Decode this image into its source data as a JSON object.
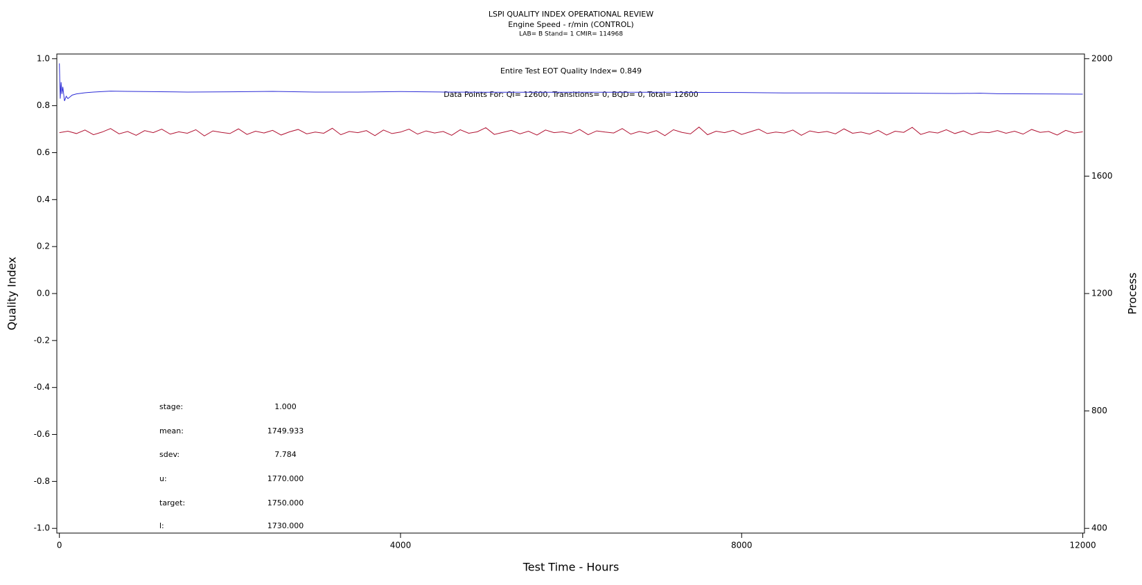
{
  "chart_data": {
    "type": "line",
    "title": "LSPI QUALITY INDEX OPERATIONAL REVIEW",
    "subtitle": "Engine Speed - r/min (CONTROL)",
    "subtitle2": "LAB= B Stand= 1 CMIR= 114968",
    "xlabel": "Test Time - Hours",
    "ylabel": "Quality Index",
    "y2label": "Process",
    "annotations": [
      "Entire Test EOT Quality Index=   0.849",
      "Data Points For: QI= 12600, Transitions=     0, BQD=     0, Total= 12600"
    ],
    "stats_table": [
      {
        "label": "stage:",
        "value": "1.000"
      },
      {
        "label": "mean:",
        "value": "1749.933"
      },
      {
        "label": "sdev:",
        "value": "7.784"
      },
      {
        "label": "u:",
        "value": "1770.000"
      },
      {
        "label": "target:",
        "value": "1750.000"
      },
      {
        "label": "l:",
        "value": "1730.000"
      }
    ],
    "xlim": [
      -30,
      12020
    ],
    "xticks": [
      0,
      4000,
      8000,
      12000
    ],
    "ylim": [
      -1.02,
      1.02
    ],
    "yticks": [
      {
        "value": -1,
        "label": "-1.0"
      },
      -0.8,
      -0.6,
      -0.4,
      -0.2,
      {
        "value": 0,
        "label": "0.0"
      },
      0.2,
      0.4,
      0.6,
      0.8,
      {
        "value": 1,
        "label": "1.0"
      }
    ],
    "y2lim": [
      384,
      2016
    ],
    "y2ticks": [
      400,
      800,
      1200,
      1600,
      2000
    ],
    "series": [
      {
        "color": "#b01030",
        "axis": "y2",
        "x": [
          0,
          100,
          200,
          300,
          400,
          500,
          600,
          700,
          800,
          900,
          1000,
          1100,
          1200,
          1300,
          1400,
          1500,
          1600,
          1700,
          1800,
          1900,
          2000,
          2100,
          2200,
          2300,
          2400,
          2500,
          2600,
          2700,
          2800,
          2900,
          3000,
          3100,
          3200,
          3300,
          3400,
          3500,
          3600,
          3700,
          3800,
          3900,
          4000,
          4100,
          4200,
          4300,
          4400,
          4500,
          4600,
          4700,
          4800,
          4900,
          5000,
          5100,
          5200,
          5300,
          5400,
          5500,
          5600,
          5700,
          5800,
          5900,
          6000,
          6100,
          6200,
          6300,
          6400,
          6500,
          6600,
          6700,
          6800,
          6900,
          7000,
          7100,
          7200,
          7300,
          7400,
          7500,
          7600,
          7700,
          7800,
          7900,
          8000,
          8100,
          8200,
          8300,
          8400,
          8500,
          8600,
          8700,
          8800,
          8900,
          9000,
          9100,
          9200,
          9300,
          9400,
          9500,
          9600,
          9700,
          9800,
          9900,
          10000,
          10100,
          10200,
          10300,
          10400,
          10500,
          10600,
          10700,
          10800,
          10900,
          11000,
          11100,
          11200,
          11300,
          11400,
          11500,
          11600,
          11700,
          11800,
          11900,
          12000
        ],
        "values": [
          1748,
          1753,
          1745,
          1757,
          1741,
          1750,
          1762,
          1744,
          1752,
          1739,
          1755,
          1748,
          1760,
          1743,
          1751,
          1746,
          1758,
          1737,
          1754,
          1749,
          1745,
          1761,
          1742,
          1753,
          1747,
          1756,
          1740,
          1751,
          1759,
          1744,
          1750,
          1746,
          1763,
          1741,
          1752,
          1748,
          1755,
          1738,
          1757,
          1745,
          1750,
          1760,
          1743,
          1754,
          1747,
          1752,
          1739,
          1758,
          1746,
          1751,
          1765,
          1742,
          1749,
          1756,
          1744,
          1753,
          1740,
          1757,
          1748,
          1751,
          1745,
          1759,
          1741,
          1754,
          1750,
          1747,
          1762,
          1743,
          1752,
          1746,
          1755,
          1738,
          1758,
          1749,
          1744,
          1767,
          1741,
          1753,
          1748,
          1756,
          1742,
          1751,
          1760,
          1745,
          1750,
          1747,
          1757,
          1739,
          1754,
          1748,
          1752,
          1744,
          1761,
          1746,
          1750,
          1743,
          1756,
          1740,
          1753,
          1749,
          1766,
          1742,
          1751,
          1747,
          1758,
          1745,
          1754,
          1741,
          1750,
          1748,
          1755,
          1746,
          1753,
          1743,
          1759,
          1749,
          1752,
          1740,
          1756,
          1747,
          1751
        ]
      },
      {
        "color": "#2b2bd6",
        "x": [
          0,
          10,
          20,
          30,
          40,
          60,
          80,
          100,
          150,
          200,
          300,
          400,
          600,
          800,
          1000,
          1500,
          2000,
          2500,
          3000,
          3500,
          4000,
          4500,
          5000,
          6000,
          7000,
          8000,
          8500,
          9000,
          10000,
          10500,
          10800,
          11000,
          12000
        ],
        "values": [
          0.98,
          0.83,
          0.9,
          0.85,
          0.88,
          0.82,
          0.84,
          0.83,
          0.845,
          0.85,
          0.855,
          0.858,
          0.862,
          0.861,
          0.86,
          0.858,
          0.859,
          0.861,
          0.858,
          0.858,
          0.86,
          0.858,
          0.857,
          0.857,
          0.857,
          0.856,
          0.854,
          0.854,
          0.853,
          0.852,
          0.853,
          0.851,
          0.849
        ]
      }
    ]
  }
}
